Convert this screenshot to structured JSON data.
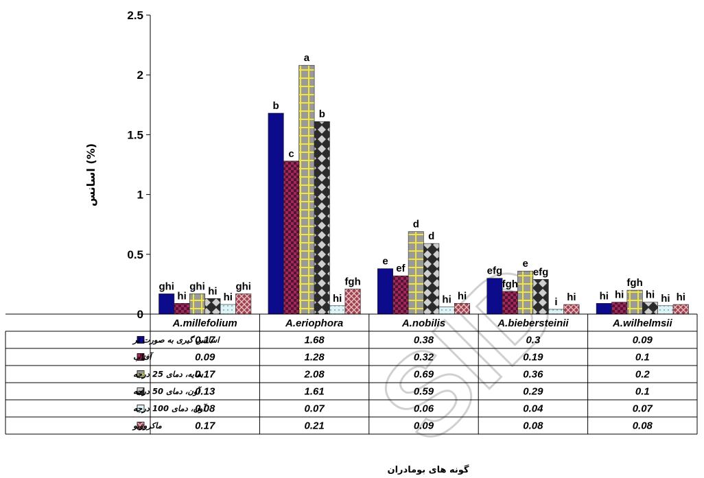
{
  "chart_data": {
    "type": "bar",
    "ylabel": "اسانس (%)",
    "xlabel": "گونه های بومادران",
    "ylim": [
      0,
      2.5
    ],
    "yticks": [
      "0",
      "0.5",
      "1",
      "1.5",
      "2",
      "2.5"
    ],
    "ytick_values": [
      0,
      0.5,
      1,
      1.5,
      2,
      2.5
    ],
    "categories": [
      "A.millefolium",
      "A.eriophora",
      "A.nobilis",
      "A.biebersteinii",
      "A.wilhelmsii"
    ],
    "series": [
      {
        "name": "اسانس گیری به صورت تر",
        "values": [
          0.17,
          1.68,
          0.38,
          0.3,
          0.09
        ],
        "value_labels": [
          "0.17",
          "1.68",
          "0.38",
          "0.3",
          "0.09"
        ],
        "letters": [
          "ghi",
          "b",
          "e",
          "efg",
          "hi"
        ],
        "color": "#0b0b8c",
        "pattern": "solid"
      },
      {
        "name": "آفتاب",
        "values": [
          0.09,
          1.28,
          0.32,
          0.19,
          0.1
        ],
        "value_labels": [
          "0.09",
          "1.28",
          "0.32",
          "0.19",
          "0.1"
        ],
        "letters": [
          "hi",
          "c",
          "ef",
          "fgh",
          "hi"
        ],
        "color": "#9b2c5e",
        "pattern": "checker"
      },
      {
        "name": "سایه، دمای 25 درجه",
        "values": [
          0.17,
          2.08,
          0.69,
          0.36,
          0.2
        ],
        "value_labels": [
          "0.17",
          "2.08",
          "0.69",
          "0.36",
          "0.2"
        ],
        "letters": [
          "ghi",
          "a",
          "d",
          "e",
          "fgh"
        ],
        "color": "#9a9a9a",
        "pattern": "yellow-grid"
      },
      {
        "name": "آون، دمای 50 درجه",
        "values": [
          0.13,
          1.61,
          0.59,
          0.29,
          0.1
        ],
        "value_labels": [
          "0.13",
          "1.61",
          "0.59",
          "0.29",
          "0.1"
        ],
        "letters": [
          "hi",
          "b",
          "d",
          "efg",
          "hi"
        ],
        "color": "#444444",
        "pattern": "diamond"
      },
      {
        "name": "آون، دمای 100 درجه",
        "values": [
          0.08,
          0.07,
          0.06,
          0.04,
          0.07
        ],
        "value_labels": [
          "0.08",
          "0.07",
          "0.06",
          "0.04",
          "0.07"
        ],
        "letters": [
          "hi",
          "hi",
          "hi",
          "i",
          "hi"
        ],
        "color": "#bfe6ec",
        "pattern": "light-dots"
      },
      {
        "name": "ماکروویو",
        "values": [
          0.17,
          0.21,
          0.09,
          0.08,
          0.08
        ],
        "value_labels": [
          "0.17",
          "0.21",
          "0.09",
          "0.08",
          "0.08"
        ],
        "letters": [
          "ghi",
          "fgh",
          "hi",
          "hi",
          "hi"
        ],
        "color": "#a0424e",
        "pattern": "crosshatch"
      }
    ],
    "legend_placement": "data-table-left",
    "grid": false
  },
  "watermark": "SID"
}
